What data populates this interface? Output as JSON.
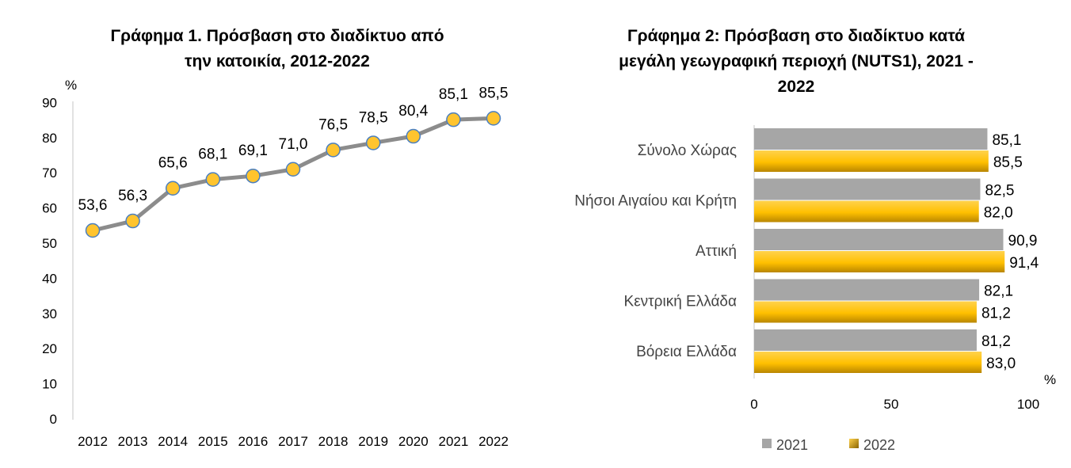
{
  "chart_data": [
    {
      "type": "line",
      "title_line1": "Γράφημα 1. Πρόσβαση στο διαδίκτυο από",
      "title_line2": "την κατοικία, 2012-2022",
      "ylabel": "%",
      "categories": [
        "2012",
        "2013",
        "2014",
        "2015",
        "2016",
        "2017",
        "2018",
        "2019",
        "2020",
        "2021",
        "2022"
      ],
      "values": [
        53.6,
        56.3,
        65.6,
        68.1,
        69.1,
        71.0,
        76.5,
        78.5,
        80.4,
        85.1,
        85.5
      ],
      "value_labels": [
        "53,6",
        "56,3",
        "65,6",
        "68,1",
        "69,1",
        "71,0",
        "76,5",
        "78,5",
        "80,4",
        "85,1",
        "85,5"
      ],
      "ylim": [
        0,
        90
      ],
      "yticks": [
        "0",
        "10",
        "20",
        "30",
        "40",
        "50",
        "60",
        "70",
        "80",
        "90"
      ],
      "line_color": "#8c8c8c",
      "marker_color": "#ffc42e",
      "marker_edge": "#4a7fc0"
    },
    {
      "type": "bar",
      "orientation": "horizontal",
      "title_line1": "Γράφημα 2: Πρόσβαση στο διαδίκτυο κατά",
      "title_line2": "μεγάλη γεωγραφική περιοχή (NUTS1), 2021 -",
      "title_line3": "2022",
      "xlabel": "%",
      "categories": [
        "Σύνολο Χώρας",
        "Νήσοι Αιγαίου και Κρήτη",
        "Αττική",
        "Κεντρική Ελλάδα",
        "Βόρεια Ελλάδα"
      ],
      "series": [
        {
          "name": "2021",
          "values": [
            85.1,
            82.5,
            90.9,
            82.1,
            81.2
          ],
          "labels": [
            "85,1",
            "82,5",
            "90,9",
            "82,1",
            "81,2"
          ],
          "color": "#a6a6a6"
        },
        {
          "name": "2022",
          "values": [
            85.5,
            82.0,
            91.4,
            81.2,
            83.0
          ],
          "labels": [
            "85,5",
            "82,0",
            "91,4",
            "81,2",
            "83,0"
          ],
          "color": "#ffc000"
        }
      ],
      "xlim": [
        0,
        100
      ],
      "xticks": [
        "0",
        "50",
        "100"
      ],
      "legend_position": "bottom"
    }
  ]
}
